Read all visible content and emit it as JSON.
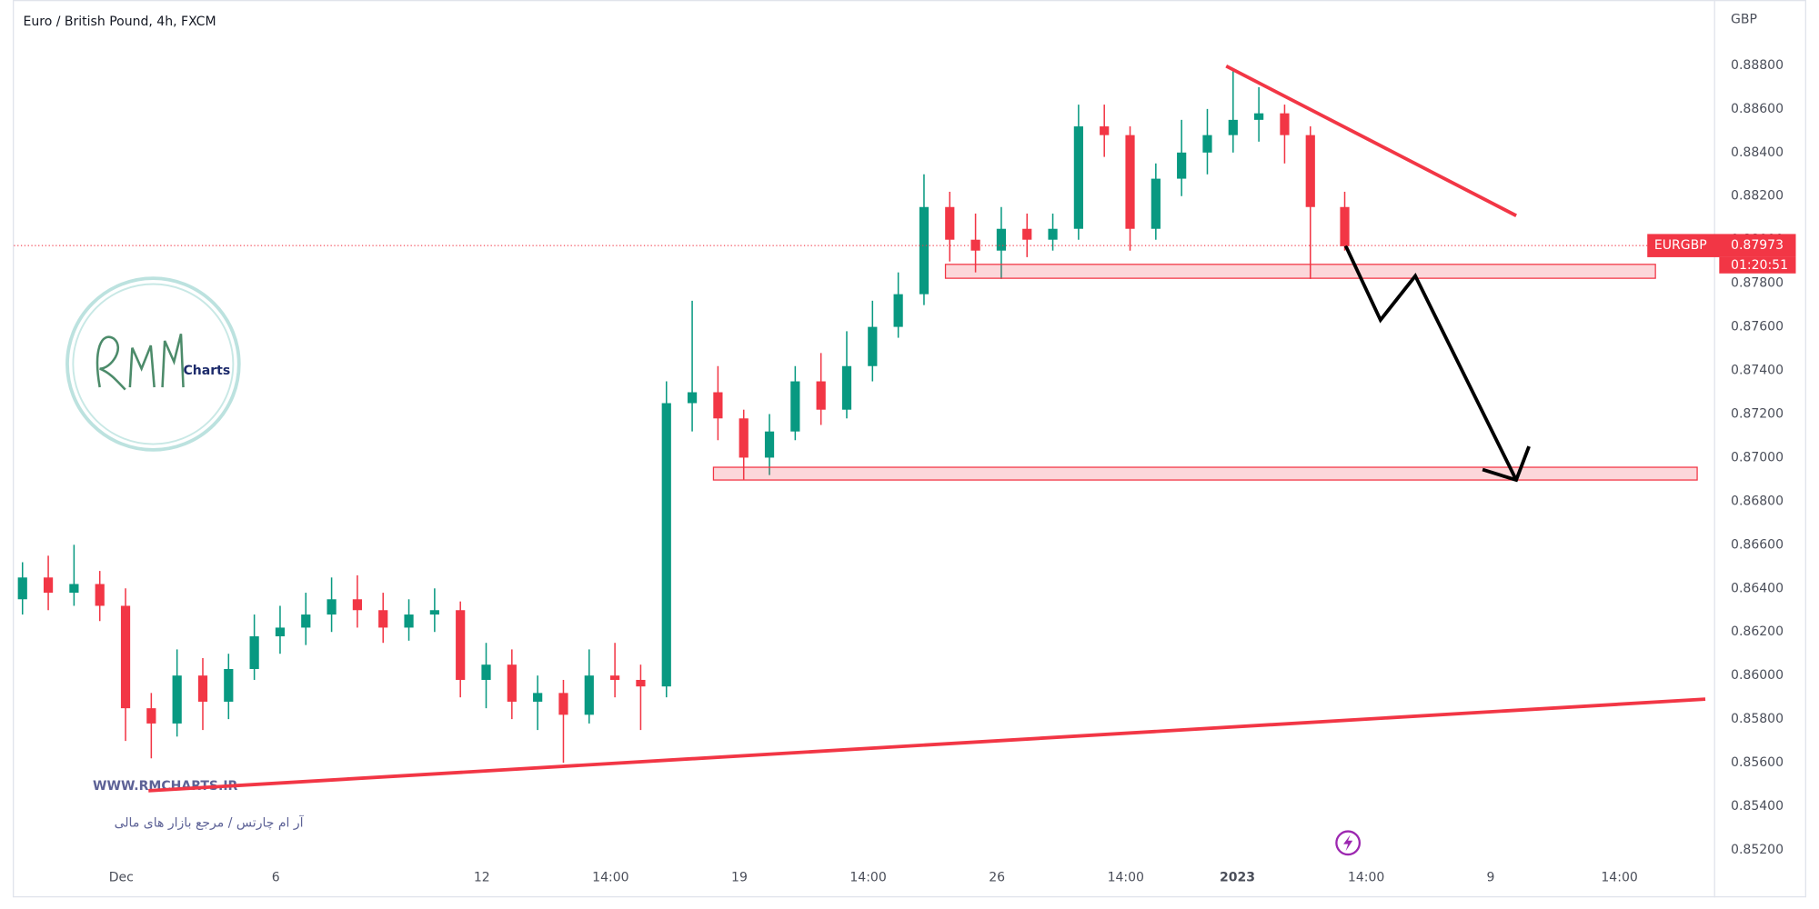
{
  "chart_data": {
    "type": "candlestick",
    "title": "Euro / British Pound, 4h, FXCM",
    "currency": "GBP",
    "x": [
      1,
      4,
      7,
      10,
      13,
      16,
      19,
      22,
      25,
      28,
      31,
      34,
      37,
      40,
      43,
      46,
      49,
      52,
      55,
      58,
      61,
      64,
      67,
      70,
      73,
      76,
      79,
      82,
      85,
      88,
      91,
      94,
      97,
      100,
      103,
      106,
      109,
      112,
      115,
      118,
      121,
      124,
      127,
      130,
      133,
      136,
      139,
      142,
      145,
      148,
      151,
      155
    ],
    "open": [
      0.8635,
      0.8645,
      0.8638,
      0.8642,
      0.8632,
      0.8585,
      0.8578,
      0.86,
      0.8588,
      0.8603,
      0.8618,
      0.8622,
      0.8628,
      0.8635,
      0.863,
      0.8622,
      0.8628,
      0.863,
      0.8598,
      0.8605,
      0.8588,
      0.8592,
      0.8582,
      0.86,
      0.8598,
      0.8595,
      0.8725,
      0.873,
      0.8718,
      0.87,
      0.8712,
      0.8735,
      0.8722,
      0.8742,
      0.876,
      0.8775,
      0.8815,
      0.88,
      0.8795,
      0.8805,
      0.88,
      0.8805,
      0.8852,
      0.8848,
      0.8805,
      0.8828,
      0.884,
      0.8848,
      0.8855,
      0.8858,
      0.8848,
      0.8815
    ],
    "high": [
      0.8652,
      0.8655,
      0.866,
      0.8648,
      0.864,
      0.8592,
      0.8612,
      0.8608,
      0.861,
      0.8628,
      0.8632,
      0.8638,
      0.8645,
      0.8646,
      0.8638,
      0.8635,
      0.864,
      0.8634,
      0.8615,
      0.8612,
      0.86,
      0.8598,
      0.8612,
      0.8615,
      0.8605,
      0.8735,
      0.8772,
      0.8742,
      0.8722,
      0.872,
      0.8742,
      0.8748,
      0.8758,
      0.8772,
      0.8785,
      0.883,
      0.8822,
      0.8812,
      0.8815,
      0.8812,
      0.8812,
      0.8862,
      0.8862,
      0.8852,
      0.8835,
      0.8855,
      0.886,
      0.8878,
      0.887,
      0.8862,
      0.8852,
      0.8822
    ],
    "low": [
      0.8628,
      0.863,
      0.8632,
      0.8625,
      0.857,
      0.8562,
      0.8572,
      0.8575,
      0.858,
      0.8598,
      0.861,
      0.8614,
      0.862,
      0.8622,
      0.8615,
      0.8616,
      0.862,
      0.859,
      0.8585,
      0.858,
      0.8575,
      0.856,
      0.8578,
      0.859,
      0.8575,
      0.859,
      0.8712,
      0.8708,
      0.869,
      0.8692,
      0.8708,
      0.8715,
      0.8718,
      0.8735,
      0.8755,
      0.877,
      0.879,
      0.8785,
      0.8782,
      0.8792,
      0.8795,
      0.88,
      0.8838,
      0.8795,
      0.88,
      0.882,
      0.883,
      0.884,
      0.8845,
      0.8835,
      0.8782,
      0.8795
    ],
    "close": [
      0.8645,
      0.8638,
      0.8642,
      0.8632,
      0.8585,
      0.8578,
      0.86,
      0.8588,
      0.8603,
      0.8618,
      0.8622,
      0.8628,
      0.8635,
      0.863,
      0.8622,
      0.8628,
      0.863,
      0.8598,
      0.8605,
      0.8588,
      0.8592,
      0.8582,
      0.86,
      0.8598,
      0.8595,
      0.8725,
      0.873,
      0.8718,
      0.87,
      0.8712,
      0.8735,
      0.8722,
      0.8742,
      0.876,
      0.8775,
      0.8815,
      0.88,
      0.8795,
      0.8805,
      0.88,
      0.8805,
      0.8852,
      0.8848,
      0.8805,
      0.8828,
      0.884,
      0.8848,
      0.8855,
      0.8858,
      0.8848,
      0.8815,
      0.8797
    ],
    "up_color": "#089981",
    "down_color": "#f23645",
    "xlim": [
      0,
      197
    ],
    "xticks": [
      {
        "value": 12.5,
        "label": "Dec"
      },
      {
        "value": 30.5,
        "label": "6"
      },
      {
        "value": 54.5,
        "label": "12"
      },
      {
        "value": 69.5,
        "label": "14:00"
      },
      {
        "value": 84.5,
        "label": "19"
      },
      {
        "value": 99.5,
        "label": "14:00"
      },
      {
        "value": 114.5,
        "label": "26"
      },
      {
        "value": 129.5,
        "label": "14:00"
      },
      {
        "value": 142.5,
        "label": "2023"
      },
      {
        "value": 157.5,
        "label": "14:00"
      },
      {
        "value": 172,
        "label": "9"
      },
      {
        "value": 187,
        "label": "14:00"
      }
    ],
    "ylim": [
      0.85,
      0.891
    ],
    "yticks": [
      {
        "value": 0.852,
        "label": "0.85200"
      },
      {
        "value": 0.854,
        "label": "0.85400"
      },
      {
        "value": 0.856,
        "label": "0.85600"
      },
      {
        "value": 0.858,
        "label": "0.85800"
      },
      {
        "value": 0.86,
        "label": "0.86000"
      },
      {
        "value": 0.862,
        "label": "0.86200"
      },
      {
        "value": 0.864,
        "label": "0.86400"
      },
      {
        "value": 0.866,
        "label": "0.86600"
      },
      {
        "value": 0.868,
        "label": "0.86800"
      },
      {
        "value": 0.87,
        "label": "0.87000"
      },
      {
        "value": 0.872,
        "label": "0.87200"
      },
      {
        "value": 0.874,
        "label": "0.87400"
      },
      {
        "value": 0.876,
        "label": "0.87600"
      },
      {
        "value": 0.878,
        "label": "0.87800"
      },
      {
        "value": 0.88,
        "label": "0.88000"
      },
      {
        "value": 0.882,
        "label": "0.88200"
      },
      {
        "value": 0.884,
        "label": "0.88400"
      },
      {
        "value": 0.886,
        "label": "0.88600"
      },
      {
        "value": 0.888,
        "label": "0.88800"
      }
    ],
    "grid": false,
    "last_price": {
      "symbol": "EURGBP",
      "value": 0.87973,
      "countdown": "01:20:51",
      "color": "#f23645"
    },
    "watermark": {
      "brand": "Charts",
      "website": "WWW.RMCHARTS.IR",
      "tagline": "آر ام چارتس / مرجع بازار های مالی"
    }
  }
}
